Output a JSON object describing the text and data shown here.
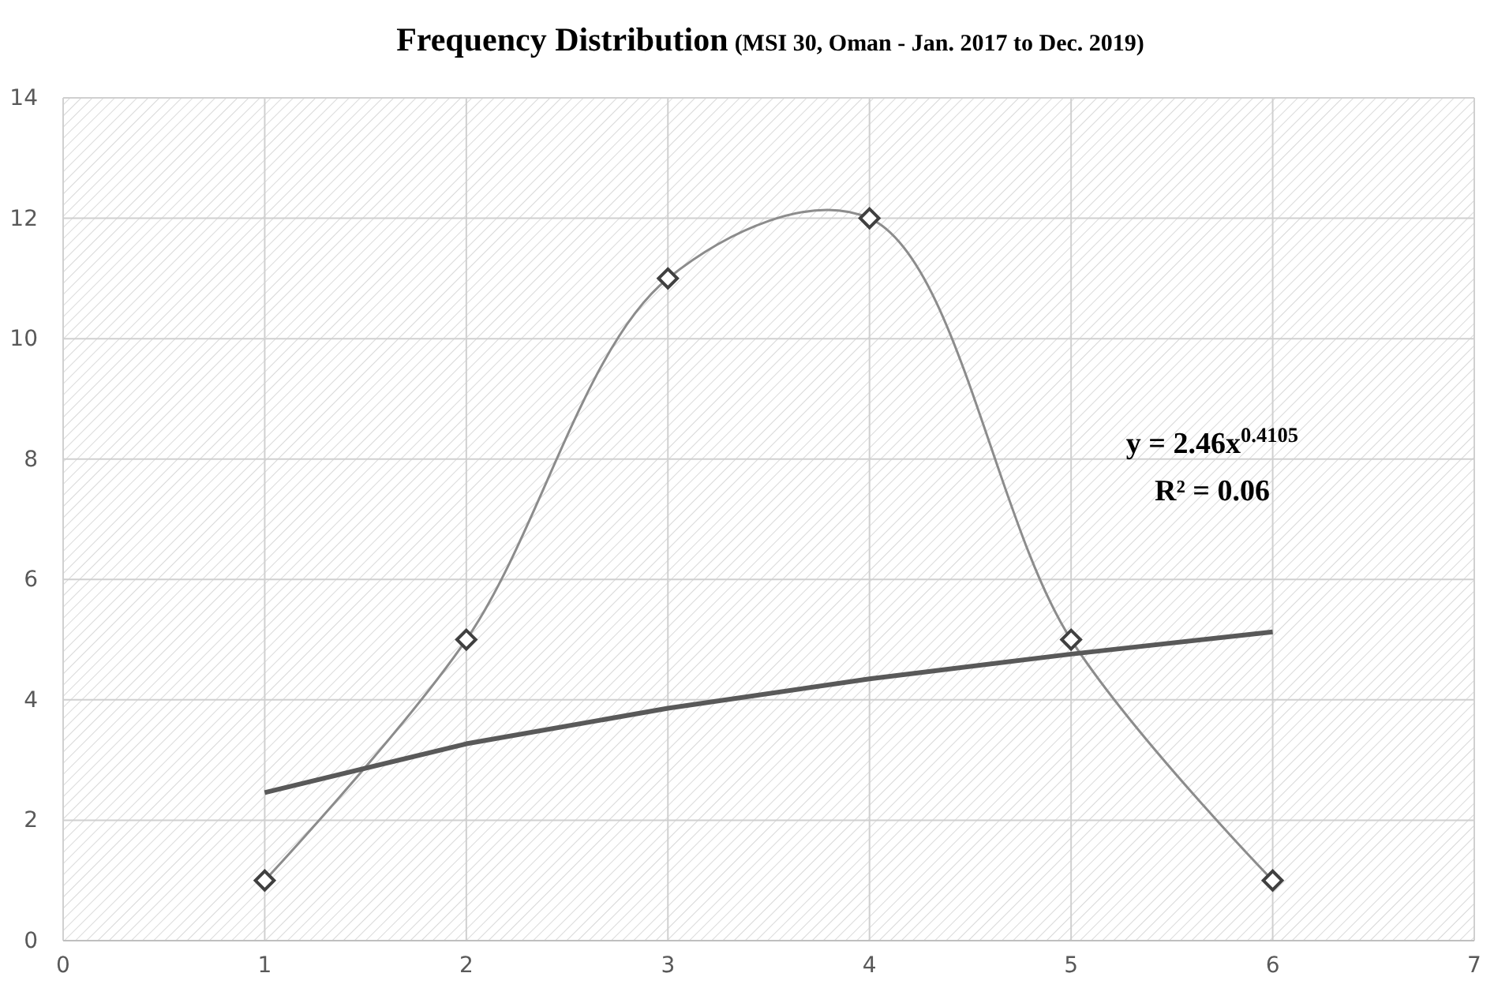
{
  "chart_data": {
    "type": "line",
    "title": "Frequency Distribution",
    "subtitle": "(MSI 30, Oman - Jan. 2017 to Dec. 2019)",
    "x": [
      1,
      2,
      3,
      4,
      5,
      6
    ],
    "series": [
      {
        "color": "#8c8c8c",
        "marker": "diamond",
        "values": [
          1,
          5,
          11,
          12,
          5,
          1
        ]
      },
      {
        "color": "#595959",
        "marker": "none",
        "x": [
          1,
          2,
          3,
          4,
          5,
          6
        ],
        "values": [
          2.46,
          3.27,
          3.86,
          4.35,
          4.76,
          5.13
        ]
      }
    ],
    "xlim": [
      0,
      7
    ],
    "xticks": [
      0,
      1,
      2,
      3,
      4,
      5,
      6,
      7
    ],
    "ylim": [
      0,
      14
    ],
    "yticks": [
      0,
      2,
      4,
      6,
      8,
      10,
      12,
      14
    ],
    "grid": true,
    "annotations": [
      "y = 2.46x$^{0.4105}$",
      "R² = 0.06"
    ]
  }
}
